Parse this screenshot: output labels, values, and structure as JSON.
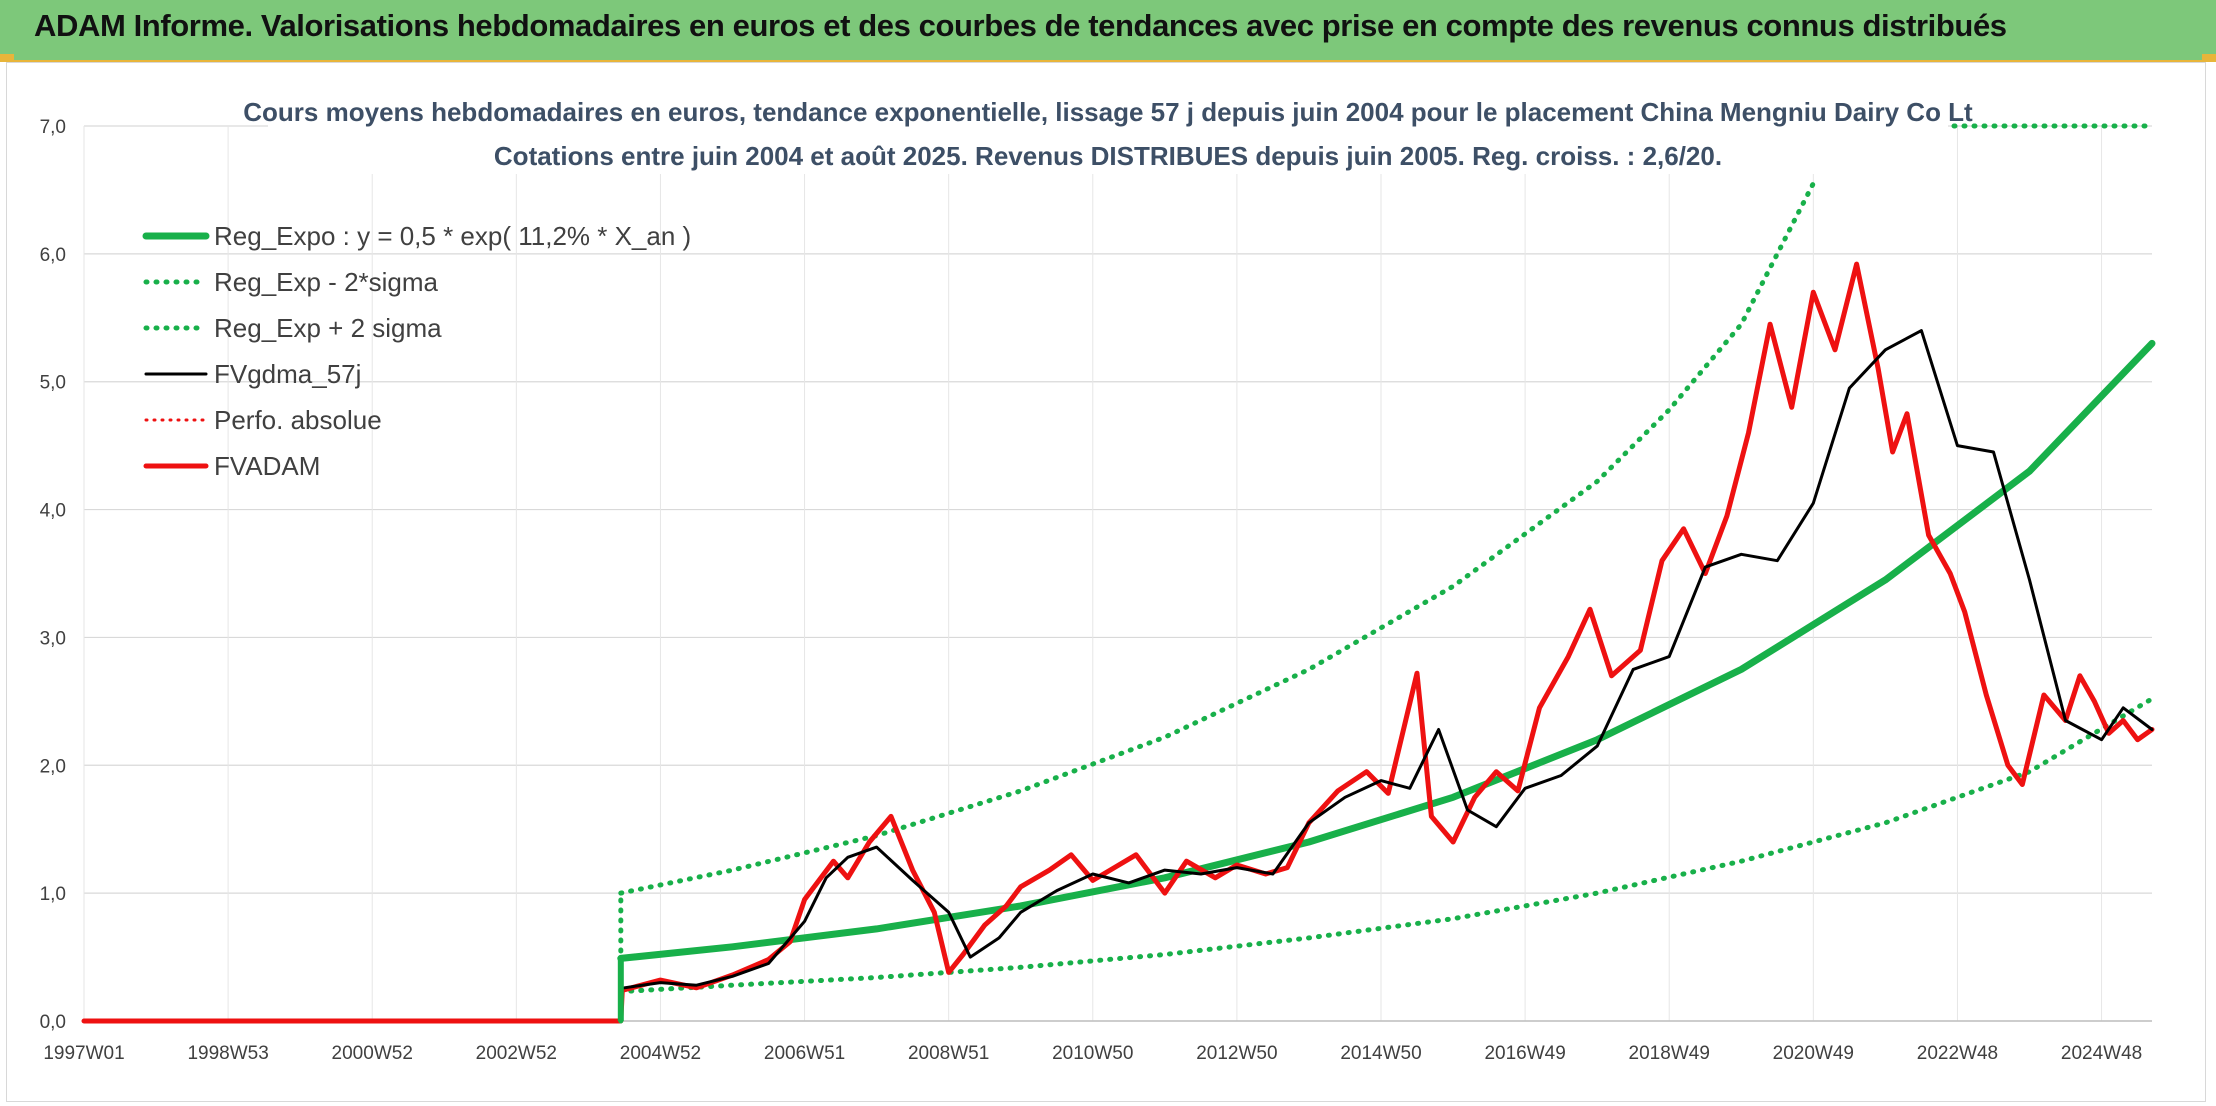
{
  "banner": {
    "title": "ADAM Informe. Valorisations hebdomadaires en euros et des courbes de tendances avec prise en compte des revenus connus distribués"
  },
  "colors": {
    "banner": "#7dc87a",
    "reg_green": "#18b04a",
    "fvgdma": "#000000",
    "fvadam": "#ee1111",
    "perfo": "#ee1111"
  },
  "chart_data": {
    "type": "line",
    "title_line1": "Cours moyens hebdomadaires en euros, tendance exponentielle, lissage 57 j depuis juin 2004 pour le placement China Mengniu Dairy Co Lt",
    "title_line2": "Cotations entre juin 2004 et août 2025. Revenus DISTRIBUES depuis juin 2005. Reg. croiss. : 2,6/20.",
    "xlabel": "",
    "ylabel": "",
    "ylim": [
      0,
      7
    ],
    "xlim": [
      1997.0,
      2025.7
    ],
    "y_ticks": [
      "0,0",
      "1,0",
      "2,0",
      "3,0",
      "4,0",
      "5,0",
      "6,0",
      "7,0"
    ],
    "x_ticks": [
      {
        "label": "1997W01",
        "x": 1997.0
      },
      {
        "label": "1998W53",
        "x": 1999.0
      },
      {
        "label": "2000W52",
        "x": 2001.0
      },
      {
        "label": "2002W52",
        "x": 2003.0
      },
      {
        "label": "2004W52",
        "x": 2005.0
      },
      {
        "label": "2006W51",
        "x": 2007.0
      },
      {
        "label": "2008W51",
        "x": 2009.0
      },
      {
        "label": "2010W50",
        "x": 2011.0
      },
      {
        "label": "2012W50",
        "x": 2013.0
      },
      {
        "label": "2014W50",
        "x": 2015.0
      },
      {
        "label": "2016W49",
        "x": 2017.0
      },
      {
        "label": "2018W49",
        "x": 2019.0
      },
      {
        "label": "2020W49",
        "x": 2021.0
      },
      {
        "label": "2022W48",
        "x": 2023.0
      },
      {
        "label": "2024W48",
        "x": 2025.0
      }
    ],
    "grid": true,
    "legend_position": "top-left",
    "series": [
      {
        "name": "Reg_Expo : y = 0,5 * exp( 11,2% *  X_an )",
        "style": "solid-thick",
        "x": [
          2004.45,
          2006,
          2008,
          2010,
          2012,
          2014,
          2016,
          2018,
          2020,
          2022,
          2024,
          2025.7
        ],
        "values": [
          0.49,
          0.58,
          0.72,
          0.9,
          1.12,
          1.4,
          1.75,
          2.2,
          2.75,
          3.45,
          4.3,
          5.3
        ]
      },
      {
        "name": "Reg_Exp - 2*sigma",
        "style": "dotted",
        "x": [
          2004.45,
          2006,
          2008,
          2010,
          2012,
          2014,
          2016,
          2018,
          2020,
          2022,
          2024,
          2025.7
        ],
        "values": [
          0.23,
          0.28,
          0.34,
          0.42,
          0.52,
          0.65,
          0.8,
          1.0,
          1.25,
          1.55,
          1.95,
          2.52
        ]
      },
      {
        "name": "Reg_Exp + 2 sigma",
        "style": "dotted",
        "x": [
          2004.45,
          2006,
          2008,
          2010,
          2012,
          2014,
          2016,
          2018,
          2019,
          2020,
          2021
        ],
        "values": [
          1.0,
          1.18,
          1.45,
          1.8,
          2.22,
          2.75,
          3.4,
          4.22,
          4.78,
          5.45,
          6.55
        ]
      },
      {
        "name": "FVgdma_57j",
        "style": "solid-thin",
        "x": [
          2004.5,
          2005,
          2005.5,
          2006,
          2006.5,
          2007,
          2007.3,
          2007.6,
          2008,
          2008.5,
          2009,
          2009.3,
          2009.7,
          2010,
          2010.5,
          2011,
          2011.5,
          2012,
          2012.5,
          2013,
          2013.5,
          2014,
          2014.5,
          2015,
          2015.4,
          2015.8,
          2016.2,
          2016.6,
          2017,
          2017.5,
          2018,
          2018.5,
          2019,
          2019.5,
          2020,
          2020.5,
          2021,
          2021.5,
          2022,
          2022.5,
          2023,
          2023.5,
          2024,
          2024.5,
          2025,
          2025.3,
          2025.7
        ],
        "values": [
          0.26,
          0.3,
          0.28,
          0.35,
          0.45,
          0.78,
          1.12,
          1.28,
          1.36,
          1.1,
          0.85,
          0.5,
          0.65,
          0.85,
          1.02,
          1.15,
          1.08,
          1.18,
          1.15,
          1.2,
          1.15,
          1.55,
          1.75,
          1.88,
          1.82,
          2.28,
          1.65,
          1.52,
          1.82,
          1.92,
          2.15,
          2.75,
          2.85,
          3.55,
          3.65,
          3.6,
          4.05,
          4.95,
          5.25,
          5.4,
          4.5,
          4.45,
          3.45,
          2.35,
          2.2,
          2.45,
          2.28
        ]
      },
      {
        "name": "Perfo. absolue",
        "style": "dotted",
        "x": [
          1997.0,
          2004.45
        ],
        "values": [
          0.0,
          0.0
        ]
      },
      {
        "name": "FVADAM",
        "style": "solid-thick",
        "x": [
          1997.0,
          2004.45,
          2004.47,
          2005,
          2005.5,
          2006,
          2006.5,
          2006.8,
          2007,
          2007.4,
          2007.6,
          2007.9,
          2008.2,
          2008.5,
          2008.8,
          2009,
          2009.2,
          2009.5,
          2009.8,
          2010,
          2010.4,
          2010.7,
          2011,
          2011.3,
          2011.6,
          2012,
          2012.3,
          2012.7,
          2013,
          2013.4,
          2013.7,
          2014,
          2014.4,
          2014.8,
          2015.1,
          2015.5,
          2015.7,
          2016.0,
          2016.3,
          2016.6,
          2016.9,
          2017.2,
          2017.6,
          2017.9,
          2018.2,
          2018.6,
          2018.9,
          2019.2,
          2019.5,
          2019.8,
          2020.1,
          2020.4,
          2020.7,
          2021.0,
          2021.3,
          2021.6,
          2021.9,
          2022.1,
          2022.3,
          2022.6,
          2022.9,
          2023.1,
          2023.4,
          2023.7,
          2023.9,
          2024.2,
          2024.5,
          2024.7,
          2024.9,
          2025.1,
          2025.3,
          2025.5,
          2025.7
        ],
        "values": [
          0.0,
          0.0,
          0.24,
          0.32,
          0.26,
          0.36,
          0.48,
          0.62,
          0.95,
          1.25,
          1.12,
          1.4,
          1.6,
          1.18,
          0.85,
          0.38,
          0.52,
          0.75,
          0.9,
          1.05,
          1.18,
          1.3,
          1.1,
          1.2,
          1.3,
          1.0,
          1.25,
          1.12,
          1.22,
          1.15,
          1.2,
          1.55,
          1.8,
          1.95,
          1.78,
          2.72,
          1.6,
          1.4,
          1.75,
          1.95,
          1.8,
          2.45,
          2.85,
          3.22,
          2.7,
          2.9,
          3.6,
          3.85,
          3.5,
          3.95,
          4.6,
          5.45,
          4.8,
          5.7,
          5.25,
          5.92,
          5.1,
          4.45,
          4.75,
          3.8,
          3.5,
          3.2,
          2.55,
          2.0,
          1.85,
          2.55,
          2.35,
          2.7,
          2.5,
          2.25,
          2.35,
          2.2,
          2.28
        ]
      }
    ]
  }
}
